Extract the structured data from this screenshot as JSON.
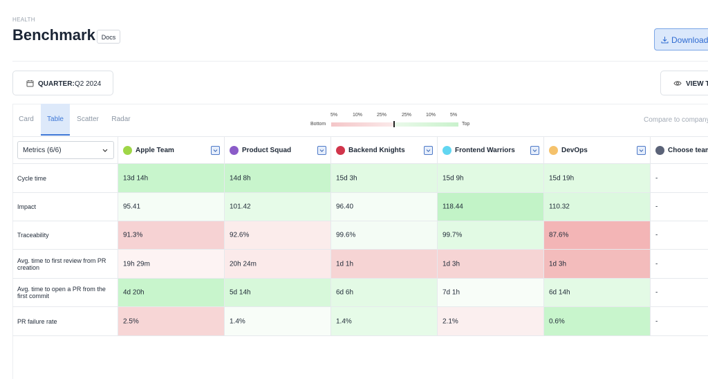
{
  "header": {
    "breadcrumb": "HEALTH",
    "title": "Benchmark",
    "docs": "Docs",
    "download": "Download"
  },
  "filter": {
    "label": "QUARTER:",
    "value": "Q2 2024"
  },
  "view_button": "VIEW T",
  "tabs": [
    "Card",
    "Table",
    "Scatter",
    "Radar"
  ],
  "active_tab": 1,
  "legend": {
    "labels": [
      "5%",
      "10%",
      "25%",
      "25%",
      "10%",
      "5%"
    ],
    "bottom": "Bottom",
    "top": "Top"
  },
  "compare": "Compare to company",
  "table": {
    "metrics_select": "Metrics (6/6)",
    "teams": [
      {
        "name": "Apple Team",
        "color": "#9fd647"
      },
      {
        "name": "Product Squad",
        "color": "#8b5cc8"
      },
      {
        "name": "Backend Knights",
        "color": "#d1354b"
      },
      {
        "name": "Frontend Warriors",
        "color": "#62d6f1"
      },
      {
        "name": "DevOps",
        "color": "#f5c26c"
      },
      {
        "name": "Choose team",
        "color": "#5b6378"
      }
    ],
    "rows": [
      {
        "metric": "Cycle time",
        "cells": [
          {
            "text": "13d 14h",
            "color": "#c8f5cc"
          },
          {
            "text": "14d 8h",
            "color": "#c8f5cc"
          },
          {
            "text": "15d 3h",
            "color": "#e1fae3"
          },
          {
            "text": "15d 9h",
            "color": "#e1fae3"
          },
          {
            "text": "15d 19h",
            "color": "#e1fae3"
          },
          {
            "text": "-"
          }
        ]
      },
      {
        "metric": "Impact",
        "cells": [
          {
            "text": "95.41",
            "color": "#f5fdf6"
          },
          {
            "text": "101.42",
            "color": "#e6fbe8"
          },
          {
            "text": "96.40",
            "color": "#f5fdf6"
          },
          {
            "text": "118.44",
            "color": "#c2f3c7"
          },
          {
            "text": "110.32",
            "color": "#dcf9df"
          },
          {
            "text": "-"
          }
        ]
      },
      {
        "metric": "Traceability",
        "cells": [
          {
            "text": "91.3%",
            "color": "#f6d2d3"
          },
          {
            "text": "92.6%",
            "color": "#fbeceb"
          },
          {
            "text": "99.6%",
            "color": "#f4fcf5"
          },
          {
            "text": "99.7%",
            "color": "#e2fae4"
          },
          {
            "text": "87.6%",
            "color": "#f3b5b6"
          },
          {
            "text": "-"
          }
        ]
      },
      {
        "metric": "Avg. time to first review from PR creation",
        "cells": [
          {
            "text": "19h 29m",
            "color": "#fdf3f3"
          },
          {
            "text": "20h 24m",
            "color": "#fbeaea"
          },
          {
            "text": "1d 1h",
            "color": "#f6d4d4"
          },
          {
            "text": "1d 3h",
            "color": "#f6d4d4"
          },
          {
            "text": "1d 3h",
            "color": "#f3bcbc"
          },
          {
            "text": "-"
          }
        ]
      },
      {
        "metric": "Avg. time to open a PR from the first commit",
        "cells": [
          {
            "text": "4d 20h",
            "color": "#c8f5cc"
          },
          {
            "text": "5d 14h",
            "color": "#d7f8da"
          },
          {
            "text": "6d 6h",
            "color": "#e3fae5"
          },
          {
            "text": "7d 1h",
            "color": "#f8fdf8"
          },
          {
            "text": "6d 14h",
            "color": "#e3fae5"
          },
          {
            "text": "-"
          }
        ]
      },
      {
        "metric": "PR failure rate",
        "cells": [
          {
            "text": "2.5%",
            "color": "#f7d6d6"
          },
          {
            "text": "1.4%",
            "color": "#f8fdf8"
          },
          {
            "text": "1.4%",
            "color": "#e6fbe8"
          },
          {
            "text": "2.1%",
            "color": "#fbefef"
          },
          {
            "text": "0.6%",
            "color": "#c8f5cc"
          },
          {
            "text": "-"
          }
        ]
      }
    ]
  }
}
